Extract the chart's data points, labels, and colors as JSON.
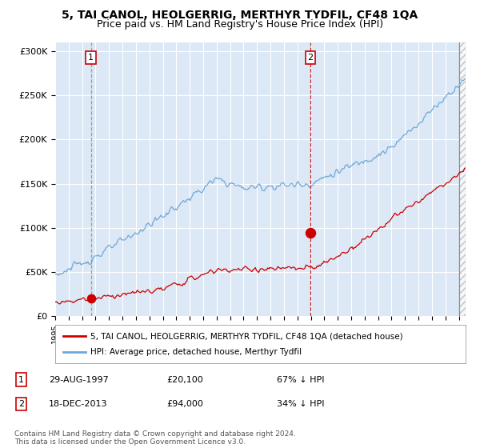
{
  "title": "5, TAI CANOL, HEOLGERRIG, MERTHYR TYDFIL, CF48 1QA",
  "subtitle": "Price paid vs. HM Land Registry's House Price Index (HPI)",
  "title_fontsize": 10,
  "subtitle_fontsize": 9,
  "bg_color": "#dce8f5",
  "hpi_color": "#6ea8d8",
  "price_color": "#cc0000",
  "ylim": [
    0,
    310000
  ],
  "yticks": [
    0,
    50000,
    100000,
    150000,
    200000,
    250000,
    300000
  ],
  "ytick_labels": [
    "£0",
    "£50K",
    "£100K",
    "£150K",
    "£200K",
    "£250K",
    "£300K"
  ],
  "sale1_date_x": 1997.66,
  "sale1_price": 20100,
  "sale2_date_x": 2013.96,
  "sale2_price": 94000,
  "legend_property": "5, TAI CANOL, HEOLGERRIG, MERTHYR TYDFIL, CF48 1QA (detached house)",
  "legend_hpi": "HPI: Average price, detached house, Merthyr Tydfil",
  "table_row1": [
    "1",
    "29-AUG-1997",
    "£20,100",
    "67% ↓ HPI"
  ],
  "table_row2": [
    "2",
    "18-DEC-2013",
    "£94,000",
    "34% ↓ HPI"
  ],
  "footnote": "Contains HM Land Registry data © Crown copyright and database right 2024.\nThis data is licensed under the Open Government Licence v3.0.",
  "xmin": 1995.0,
  "xmax": 2025.5
}
